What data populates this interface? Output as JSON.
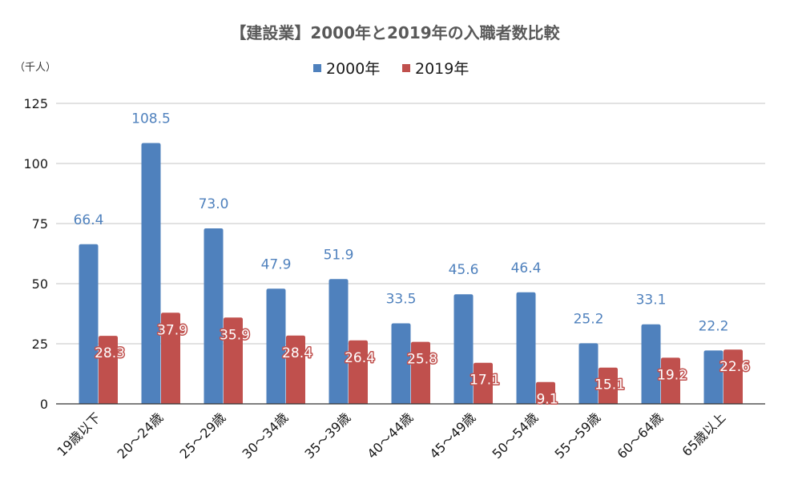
{
  "chart_data": {
    "type": "bar",
    "title": "【建設業】2000年と2019年の入職者数比較",
    "unit_label": "（千人）",
    "xlabel": "",
    "ylabel": "（千人）",
    "ylim": [
      0,
      125
    ],
    "yticks": [
      0,
      25,
      50,
      75,
      100,
      125
    ],
    "grid": true,
    "legend_position": "top-center",
    "categories": [
      "19歳以下",
      "20〜24歳",
      "25〜29歳",
      "30〜34歳",
      "35〜39歳",
      "40〜44歳",
      "45〜49歳",
      "50〜54歳",
      "55〜59歳",
      "60〜64歳",
      "65歳以上"
    ],
    "series": [
      {
        "name": "2000年",
        "color": "#4F81BD",
        "values": [
          66.4,
          108.5,
          73.0,
          47.9,
          51.9,
          33.5,
          45.6,
          46.4,
          25.2,
          33.1,
          22.2
        ],
        "labels": [
          "66.4",
          "108.5",
          "73.0",
          "47.9",
          "51.9",
          "33.5",
          "45.6",
          "46.4",
          "25.2",
          "33.1",
          "22.2"
        ]
      },
      {
        "name": "2019年",
        "color": "#C0504D",
        "values": [
          28.3,
          37.9,
          35.9,
          28.4,
          26.4,
          25.8,
          17.1,
          9.1,
          15.1,
          19.2,
          22.6
        ],
        "labels": [
          "28.3",
          "37.9",
          "35.9",
          "28.4",
          "26.4",
          "25.8",
          "17.1",
          "9.1",
          "15.1",
          "19.2",
          "22.6"
        ]
      }
    ]
  }
}
